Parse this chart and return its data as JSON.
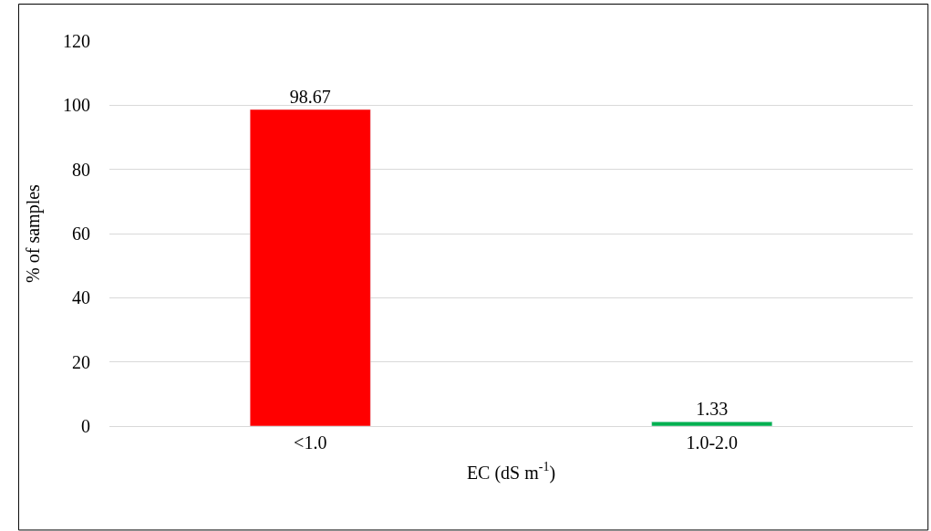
{
  "chart_data": {
    "type": "bar",
    "categories": [
      "<1.0",
      "1.0-2.0"
    ],
    "values": [
      98.67,
      1.33
    ],
    "colors": [
      "#ff0000",
      "#00b050"
    ],
    "xlabel": "EC (dS m$^{-1}$)",
    "ylabel": "% of samples",
    "ylim": [
      0,
      120
    ],
    "yticks": [
      0,
      20,
      40,
      60,
      80,
      100,
      120
    ],
    "grid": "y",
    "data_labels": true
  }
}
